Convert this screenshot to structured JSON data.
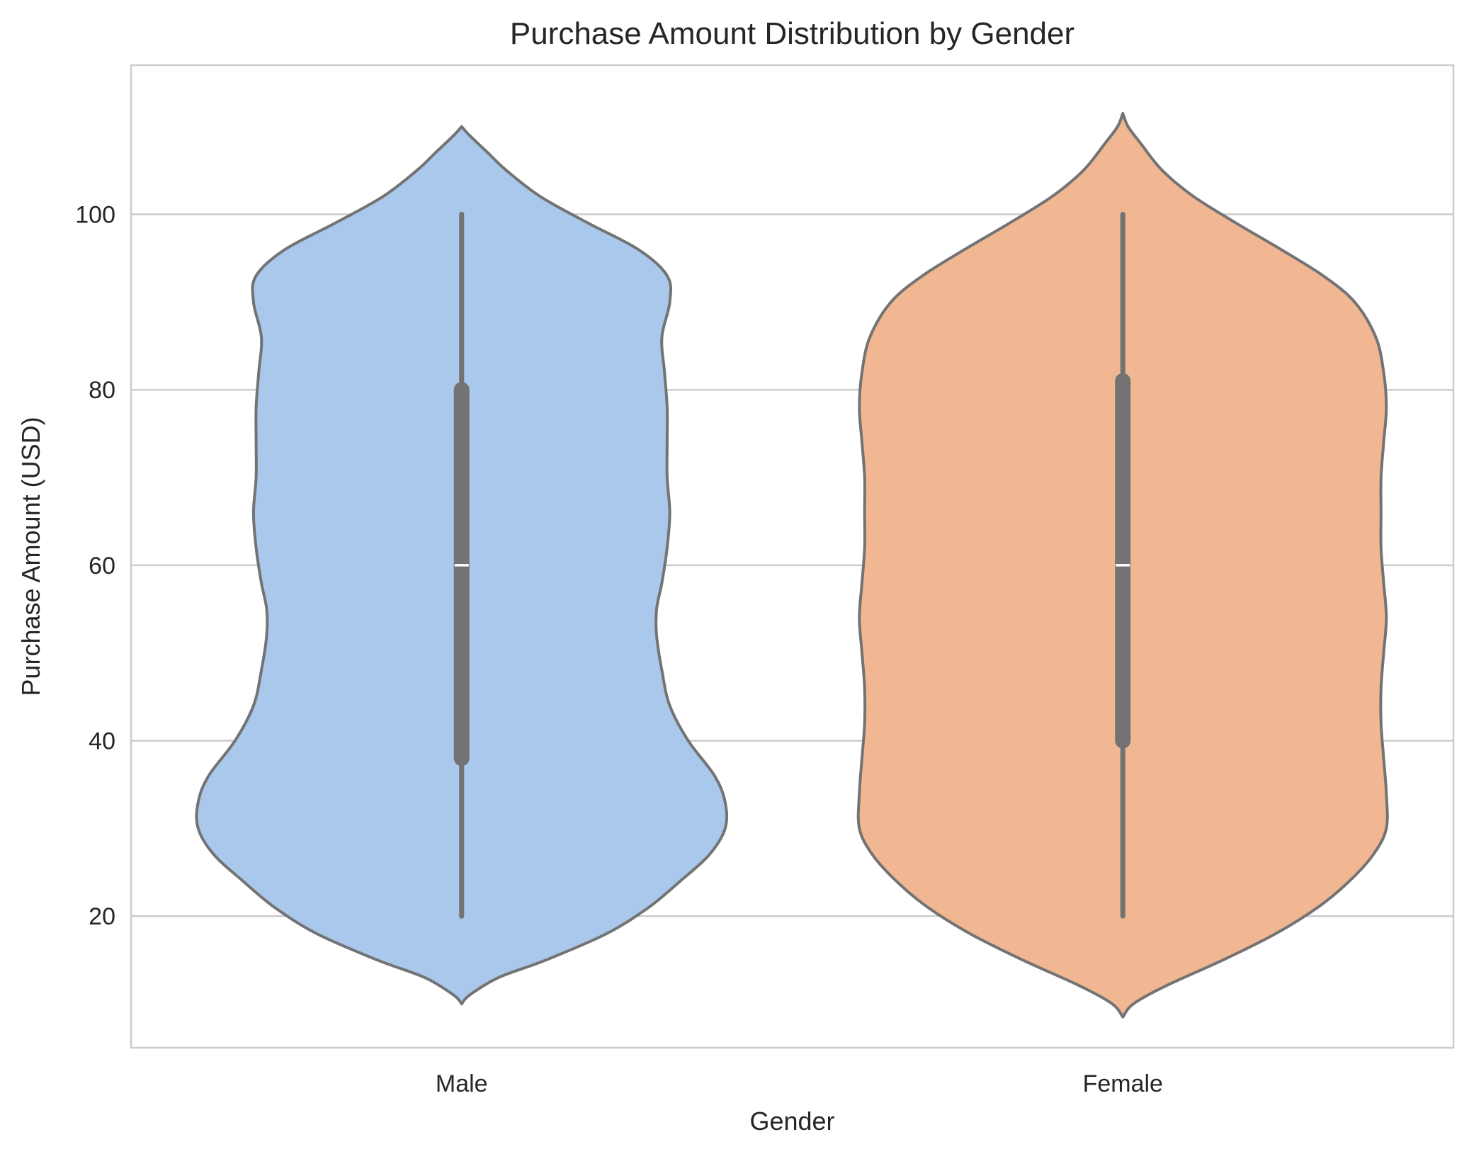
{
  "chart_data": {
    "type": "violin",
    "title": "Purchase Amount Distribution by Gender",
    "xlabel": "Gender",
    "ylabel": "Purchase Amount (USD)",
    "categories": [
      "Male",
      "Female"
    ],
    "ylim": [
      5,
      117
    ],
    "yticks": [
      20,
      40,
      60,
      80,
      100
    ],
    "grid": "horizontal",
    "colors": {
      "Male": "#a9c8eb",
      "Female": "#f0b792",
      "edge": "#737373",
      "median": "#ffffff",
      "grid": "#cccccc",
      "frame": "#cccccc"
    },
    "series": [
      {
        "category": "Male",
        "min": 20,
        "q1": 38,
        "median": 60,
        "q3": 80,
        "max": 100,
        "kde_range": [
          10,
          110
        ],
        "kde_profile": [
          [
            10,
            0.0
          ],
          [
            11,
            0.03
          ],
          [
            13,
            0.14
          ],
          [
            15,
            0.32
          ],
          [
            18,
            0.55
          ],
          [
            21,
            0.71
          ],
          [
            24,
            0.83
          ],
          [
            27,
            0.94
          ],
          [
            30,
            1.0
          ],
          [
            33,
            1.0
          ],
          [
            36,
            0.96
          ],
          [
            40,
            0.86
          ],
          [
            44,
            0.79
          ],
          [
            48,
            0.76
          ],
          [
            52,
            0.74
          ],
          [
            55,
            0.74
          ],
          [
            58,
            0.76
          ],
          [
            62,
            0.78
          ],
          [
            66,
            0.79
          ],
          [
            70,
            0.78
          ],
          [
            74,
            0.78
          ],
          [
            78,
            0.78
          ],
          [
            82,
            0.77
          ],
          [
            86,
            0.76
          ],
          [
            90,
            0.79
          ],
          [
            93,
            0.78
          ],
          [
            96,
            0.67
          ],
          [
            99,
            0.48
          ],
          [
            102,
            0.3
          ],
          [
            105,
            0.17
          ],
          [
            107,
            0.1
          ],
          [
            109,
            0.03
          ],
          [
            110,
            0.0
          ]
        ]
      },
      {
        "category": "Female",
        "min": 20,
        "q1": 40,
        "median": 60,
        "q3": 81,
        "max": 100,
        "kde_range": [
          8.5,
          111.5
        ],
        "kde_profile": [
          [
            8.5,
            0.0
          ],
          [
            10,
            0.04
          ],
          [
            12,
            0.16
          ],
          [
            15,
            0.38
          ],
          [
            18,
            0.58
          ],
          [
            21,
            0.74
          ],
          [
            24,
            0.86
          ],
          [
            27,
            0.95
          ],
          [
            30,
            1.0
          ],
          [
            34,
            1.0
          ],
          [
            38,
            0.99
          ],
          [
            42,
            0.98
          ],
          [
            46,
            0.98
          ],
          [
            50,
            0.99
          ],
          [
            54,
            1.0
          ],
          [
            58,
            0.99
          ],
          [
            62,
            0.98
          ],
          [
            66,
            0.98
          ],
          [
            70,
            0.98
          ],
          [
            74,
            0.99
          ],
          [
            78,
            1.0
          ],
          [
            82,
            0.99
          ],
          [
            86,
            0.96
          ],
          [
            90,
            0.88
          ],
          [
            93,
            0.76
          ],
          [
            96,
            0.6
          ],
          [
            99,
            0.43
          ],
          [
            102,
            0.27
          ],
          [
            105,
            0.15
          ],
          [
            108,
            0.07
          ],
          [
            110,
            0.02
          ],
          [
            111.5,
            0.0
          ]
        ]
      }
    ]
  }
}
